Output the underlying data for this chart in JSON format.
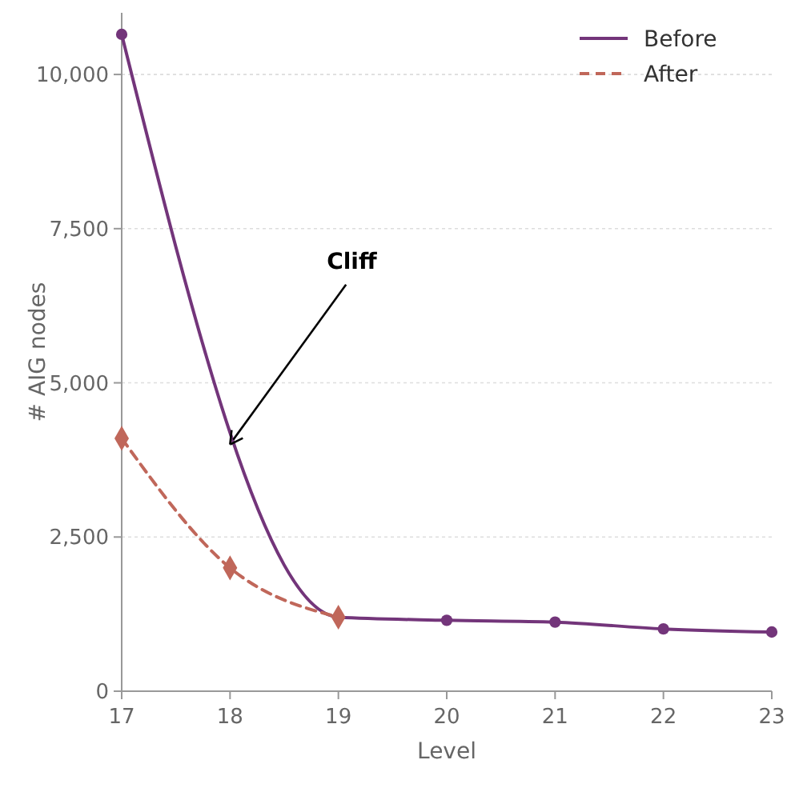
{
  "chart_data": {
    "type": "line",
    "xlabel": "Level",
    "ylabel": "# AIG nodes",
    "xlim": [
      17,
      23
    ],
    "xticks": [
      17,
      18,
      19,
      20,
      21,
      22,
      23
    ],
    "ylim": [
      0,
      11000
    ],
    "yticks": [
      0,
      {
        "value": 2500,
        "label": "2,500"
      },
      {
        "value": 5000,
        "label": "5,000"
      },
      {
        "value": 7500,
        "label": "7,500"
      },
      {
        "value": 10000,
        "label": "10,000"
      }
    ],
    "grid": "y",
    "legend": "top right",
    "series": [
      {
        "name": "Before",
        "color": "#73357a",
        "x": [
          17,
          19,
          20,
          21,
          22,
          23
        ],
        "values": [
          10650,
          1200,
          1150,
          1120,
          1010,
          960
        ],
        "marker": "circle",
        "line_style": "solid"
      },
      {
        "name": "After",
        "color": "#c0675a",
        "x": [
          17,
          18,
          19
        ],
        "values": [
          4100,
          2000,
          1200
        ],
        "marker": "diamond",
        "line_style": "dashed"
      }
    ],
    "annotations": [
      {
        "text": "Cliff",
        "x": 18,
        "y": 4000
      }
    ]
  }
}
